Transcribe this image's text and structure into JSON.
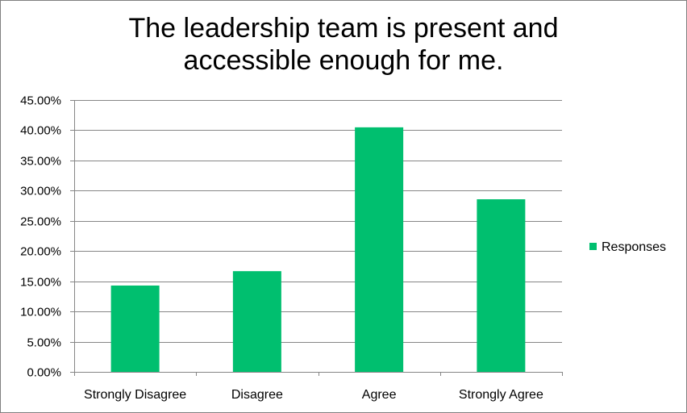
{
  "chart_data": {
    "type": "bar",
    "title_lines": [
      "The leadership team is present and",
      "accessible enough for me."
    ],
    "categories": [
      "Strongly Disagree",
      "Disagree",
      "Agree",
      "Strongly Agree"
    ],
    "series": [
      {
        "name": "Responses",
        "values": [
          14.29,
          16.67,
          40.48,
          28.57
        ],
        "color": "#00BF6F"
      }
    ],
    "ylim": [
      0,
      45
    ],
    "y_ticks": [
      0,
      5,
      10,
      15,
      20,
      25,
      30,
      35,
      40,
      45
    ],
    "y_tick_format": "percent-2dp",
    "grid": true,
    "gridline_color": "#868686",
    "legend_position": "right"
  }
}
